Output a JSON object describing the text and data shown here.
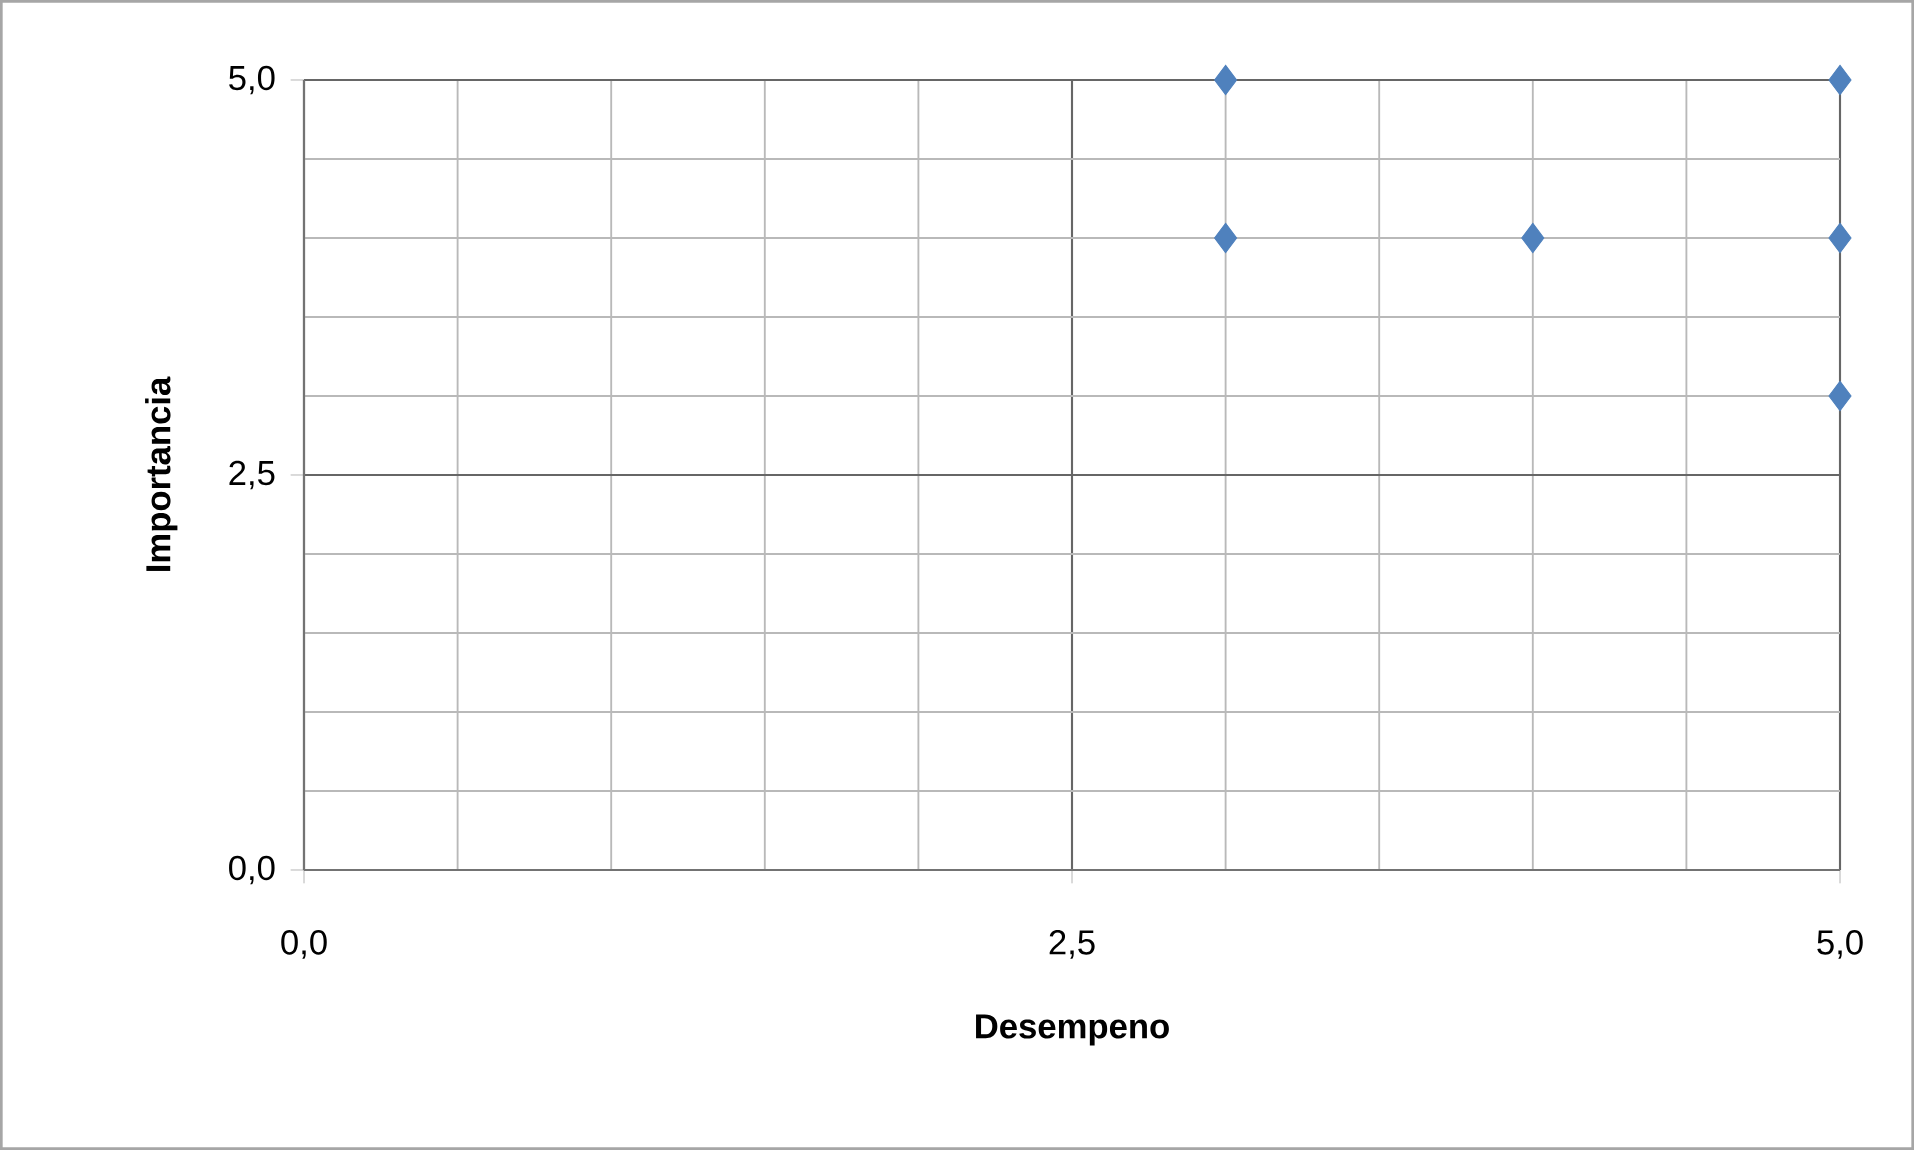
{
  "chart_data": {
    "type": "scatter",
    "xlabel": "Desempeno",
    "ylabel": "Importancia",
    "x": [
      3,
      3,
      4,
      5,
      5,
      5
    ],
    "values": [
      5,
      4,
      4,
      5,
      4,
      3
    ],
    "color": "#4f81bd",
    "marker": "diamond",
    "xlim": [
      0,
      5
    ],
    "ylim": [
      0,
      5
    ],
    "xticks": [
      {
        "value": 0,
        "label": "0,0"
      },
      {
        "value": 2.5,
        "label": "2,5"
      },
      {
        "value": 5,
        "label": "5,0"
      }
    ],
    "yticks": [
      {
        "value": 0,
        "label": "0,0"
      },
      {
        "value": 2.5,
        "label": "2,5"
      },
      {
        "value": 5,
        "label": "5,0"
      }
    ],
    "grid": true
  }
}
